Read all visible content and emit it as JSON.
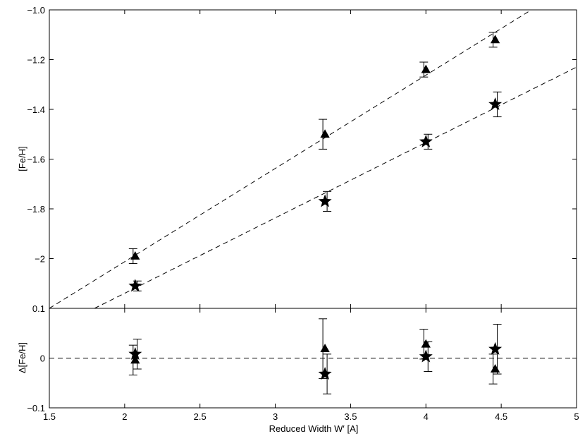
{
  "chart_data": [
    {
      "type": "scatter",
      "panel": "top",
      "xlabel": "",
      "ylabel": "[Fe/H]",
      "xlim": [
        1.5,
        5
      ],
      "ylim": [
        -2.2,
        -1.0
      ],
      "xticks": [
        1.5,
        2,
        2.5,
        3,
        3.5,
        4,
        4.5,
        5
      ],
      "yticks": [
        -2.2,
        -2.0,
        -1.8,
        -1.6,
        -1.4,
        -1.2,
        -1.0
      ],
      "ytick_labels": [
        "",
        "−2",
        "−1.8",
        "−1.6",
        "−1.4",
        "−1.2",
        "−1.0"
      ],
      "grid": false,
      "series": [
        {
          "marker": "triangle",
          "points": [
            {
              "x": 2.07,
              "y": -1.99,
              "err": 0.03
            },
            {
              "x": 3.33,
              "y": -1.5,
              "err": 0.06
            },
            {
              "x": 4.0,
              "y": -1.24,
              "err": 0.03
            },
            {
              "x": 4.46,
              "y": -1.12,
              "err": 0.03
            }
          ],
          "fit_line": {
            "x": [
              1.5,
              4.7
            ],
            "y": [
              -2.2,
              -1.0
            ]
          }
        },
        {
          "marker": "star",
          "points": [
            {
              "x": 2.07,
              "y": -2.11,
              "err": 0.02
            },
            {
              "x": 3.33,
              "y": -1.77,
              "err": 0.04
            },
            {
              "x": 4.0,
              "y": -1.53,
              "err": 0.03
            },
            {
              "x": 4.46,
              "y": -1.38,
              "err": 0.05
            }
          ],
          "fit_line": {
            "x": [
              1.8,
              5.0
            ],
            "y": [
              -2.2,
              -1.23
            ]
          }
        }
      ]
    },
    {
      "type": "scatter",
      "panel": "bottom",
      "xlabel": "Reduced Width W′ [A]",
      "ylabel": "Δ[Fe/H]",
      "xlim": [
        1.5,
        5
      ],
      "ylim": [
        -0.1,
        0.1
      ],
      "xticks": [
        1.5,
        2,
        2.5,
        3,
        3.5,
        4,
        4.5,
        5
      ],
      "xtick_labels": [
        "1.5",
        "2",
        "2.5",
        "3",
        "3.5",
        "4",
        "4.5",
        "5"
      ],
      "yticks": [
        -0.1,
        0,
        0.1
      ],
      "ytick_labels": [
        "−0.1",
        "0",
        "0.1"
      ],
      "reference_line": 0,
      "grid": false,
      "series": [
        {
          "marker": "triangle",
          "points": [
            {
              "x": 2.07,
              "y": -0.004,
              "err": 0.03
            },
            {
              "x": 3.33,
              "y": 0.019,
              "err": 0.06
            },
            {
              "x": 4.0,
              "y": 0.028,
              "err": 0.03
            },
            {
              "x": 4.46,
              "y": -0.022,
              "err": 0.03
            }
          ]
        },
        {
          "marker": "star",
          "points": [
            {
              "x": 2.07,
              "y": 0.008,
              "err": 0.03
            },
            {
              "x": 3.33,
              "y": -0.032,
              "err": 0.04
            },
            {
              "x": 4.0,
              "y": 0.003,
              "err": 0.03
            },
            {
              "x": 4.46,
              "y": 0.018,
              "err": 0.05
            }
          ]
        }
      ]
    }
  ]
}
